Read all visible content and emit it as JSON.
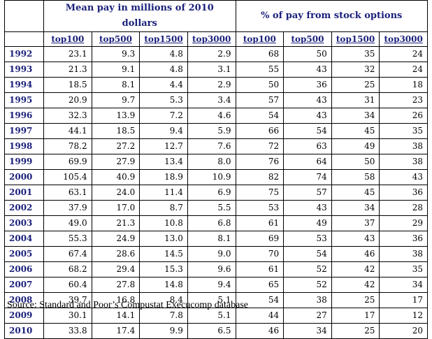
{
  "header": {
    "group_pay": "Mean pay in millions of 2010 dollars",
    "group_options": "% of pay from stock options",
    "columns": [
      "top100",
      "top500",
      "top1500",
      "top3000",
      "top100",
      "top500",
      "top1500",
      "top3000"
    ]
  },
  "rows": [
    {
      "year": "1992",
      "pay": [
        "23.1",
        "9.3",
        "4.8",
        "2.9"
      ],
      "opt": [
        "68",
        "50",
        "35",
        "24"
      ]
    },
    {
      "year": "1993",
      "pay": [
        "21.3",
        "9.1",
        "4.8",
        "3.1"
      ],
      "opt": [
        "55",
        "43",
        "32",
        "24"
      ]
    },
    {
      "year": "1994",
      "pay": [
        "18.5",
        "8.1",
        "4.4",
        "2.9"
      ],
      "opt": [
        "50",
        "36",
        "25",
        "18"
      ]
    },
    {
      "year": "1995",
      "pay": [
        "20.9",
        "9.7",
        "5.3",
        "3.4"
      ],
      "opt": [
        "57",
        "43",
        "31",
        "23"
      ]
    },
    {
      "year": "1996",
      "pay": [
        "32.3",
        "13.9",
        "7.2",
        "4.6"
      ],
      "opt": [
        "54",
        "43",
        "34",
        "26"
      ]
    },
    {
      "year": "1997",
      "pay": [
        "44.1",
        "18.5",
        "9.4",
        "5.9"
      ],
      "opt": [
        "66",
        "54",
        "45",
        "35"
      ]
    },
    {
      "year": "1998",
      "pay": [
        "78.2",
        "27.2",
        "12.7",
        "7.6"
      ],
      "opt": [
        "72",
        "63",
        "49",
        "38"
      ]
    },
    {
      "year": "1999",
      "pay": [
        "69.9",
        "27.9",
        "13.4",
        "8.0"
      ],
      "opt": [
        "76",
        "64",
        "50",
        "38"
      ]
    },
    {
      "year": "2000",
      "pay": [
        "105.4",
        "40.9",
        "18.9",
        "10.9"
      ],
      "opt": [
        "82",
        "74",
        "58",
        "43"
      ]
    },
    {
      "year": "2001",
      "pay": [
        "63.1",
        "24.0",
        "11.4",
        "6.9"
      ],
      "opt": [
        "75",
        "57",
        "45",
        "36"
      ]
    },
    {
      "year": "2002",
      "pay": [
        "37.9",
        "17.0",
        "8.7",
        "5.5"
      ],
      "opt": [
        "53",
        "43",
        "34",
        "28"
      ]
    },
    {
      "year": "2003",
      "pay": [
        "49.0",
        "21.3",
        "10.8",
        "6.8"
      ],
      "opt": [
        "61",
        "49",
        "37",
        "29"
      ]
    },
    {
      "year": "2004",
      "pay": [
        "55.3",
        "24.9",
        "13.0",
        "8.1"
      ],
      "opt": [
        "69",
        "53",
        "43",
        "36"
      ]
    },
    {
      "year": "2005",
      "pay": [
        "67.4",
        "28.6",
        "14.5",
        "9.0"
      ],
      "opt": [
        "70",
        "54",
        "46",
        "38"
      ]
    },
    {
      "year": "2006",
      "pay": [
        "68.2",
        "29.4",
        "15.3",
        "9.6"
      ],
      "opt": [
        "61",
        "52",
        "42",
        "35"
      ]
    },
    {
      "year": "2007",
      "pay": [
        "60.4",
        "27.8",
        "14.8",
        "9.4"
      ],
      "opt": [
        "65",
        "52",
        "42",
        "34"
      ]
    },
    {
      "year": "2008",
      "pay": [
        "39.7",
        "16.8",
        "8.4",
        "5.1"
      ],
      "opt": [
        "54",
        "38",
        "25",
        "17"
      ]
    },
    {
      "year": "2009",
      "pay": [
        "30.1",
        "14.1",
        "7.8",
        "5.1"
      ],
      "opt": [
        "44",
        "27",
        "17",
        "12"
      ]
    },
    {
      "year": "2010",
      "pay": [
        "33.8",
        "17.4",
        "9.9",
        "6.5"
      ],
      "opt": [
        "46",
        "34",
        "25",
        "20"
      ]
    }
  ],
  "footer": {
    "source": "Source: Standard and Poor’s Compustat Execucomp database"
  }
}
